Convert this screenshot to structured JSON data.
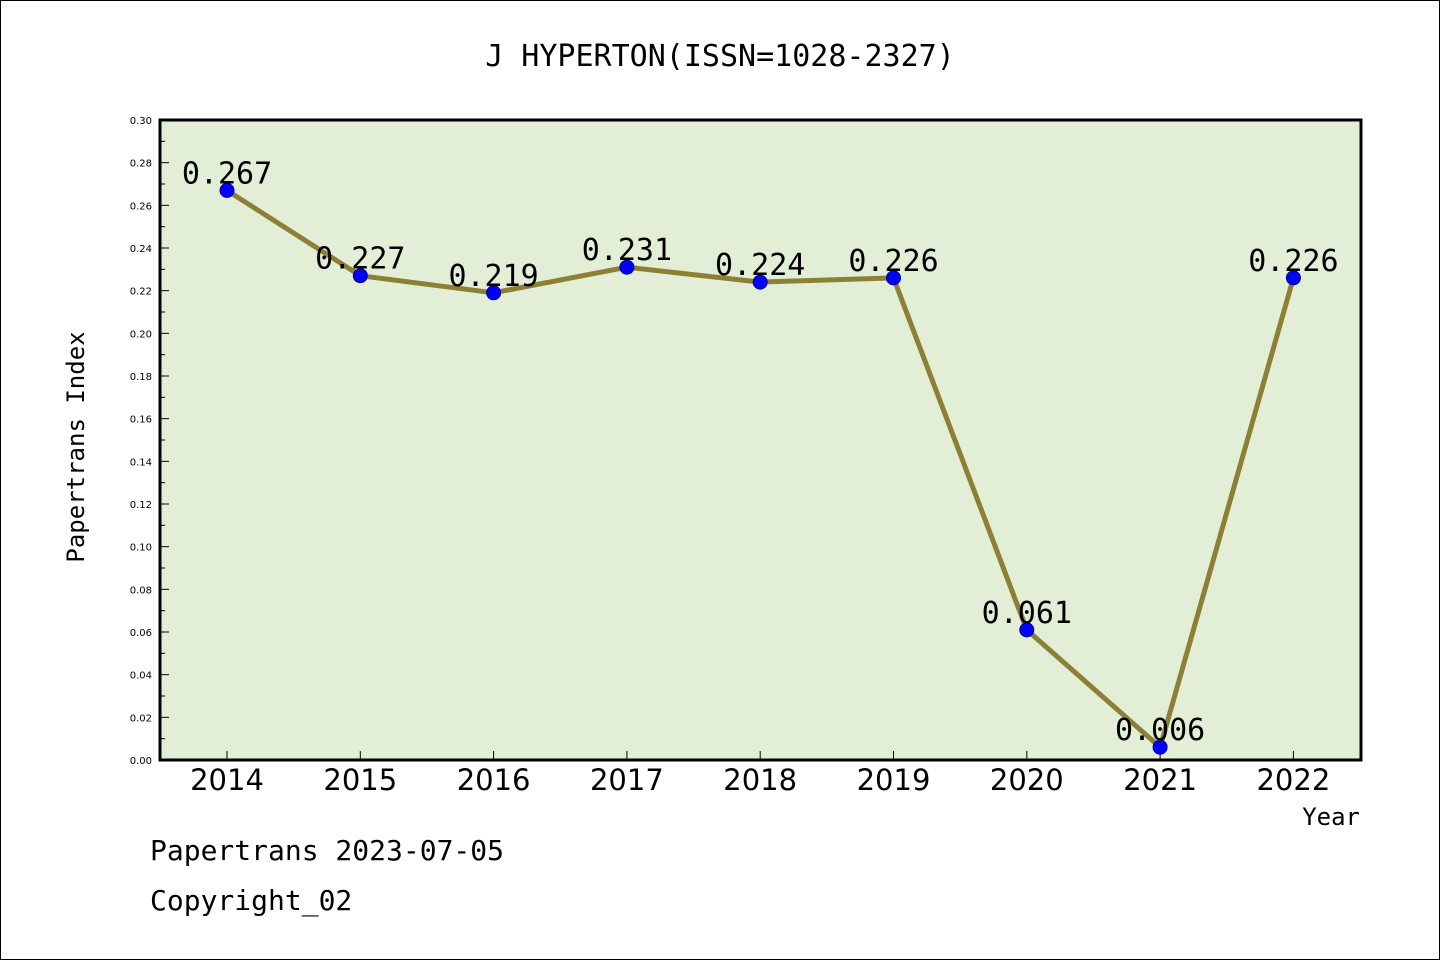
{
  "chart_data": {
    "type": "line",
    "title": "J HYPERTON(ISSN=1028-2327)",
    "xlabel": "Year",
    "ylabel": "Papertrans Index",
    "categories": [
      "2014",
      "2015",
      "2016",
      "2017",
      "2018",
      "2019",
      "2020",
      "2021",
      "2022"
    ],
    "series": [
      {
        "values": [
          0.267,
          0.227,
          0.219,
          0.231,
          0.224,
          0.226,
          0.061,
          0.006,
          0.226
        ],
        "labels": [
          "0.267",
          "0.227",
          "0.219",
          "0.231",
          "0.224",
          "0.226",
          "0.061",
          "0.006",
          "0.226"
        ],
        "line_color": "#8b8035",
        "marker_color": "#0000ff"
      }
    ],
    "ylim": [
      0,
      0.3
    ],
    "yticks": [
      "0.00",
      "0.02",
      "0.04",
      "0.06",
      "0.08",
      "0.10",
      "0.12",
      "0.14",
      "0.16",
      "0.18",
      "0.20",
      "0.22",
      "0.24",
      "0.26",
      "0.28",
      "0.30"
    ],
    "plot_background": "#e2efd6",
    "grid": false,
    "legend": "none"
  },
  "footer": {
    "line1": "Papertrans 2023-07-05",
    "line2": "Copyright_02"
  }
}
